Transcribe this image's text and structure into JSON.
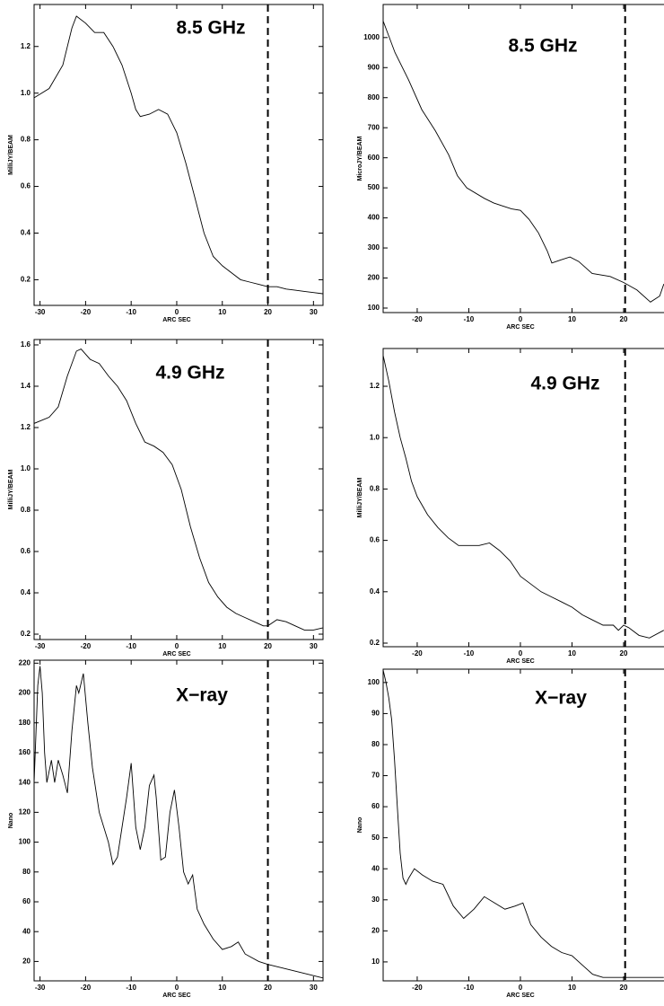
{
  "chart_data": [
    {
      "type": "line",
      "title": "8.5 GHz",
      "xlabel": "ARC SEC",
      "ylabel": "MilliJY/BEAM",
      "color": "#000000",
      "vline": 20,
      "x": [
        -31.3,
        -28,
        -25,
        -23,
        -22,
        -20,
        -18,
        -16,
        -14,
        -12,
        -10,
        -9,
        -8,
        -6,
        -4,
        -2,
        0,
        2,
        4,
        6,
        8,
        10,
        12,
        14,
        16,
        18,
        20,
        22,
        24,
        26,
        28,
        30,
        32
      ],
      "values": [
        0.98,
        1.02,
        1.12,
        1.28,
        1.33,
        1.3,
        1.26,
        1.26,
        1.2,
        1.12,
        1.0,
        0.93,
        0.9,
        0.91,
        0.93,
        0.91,
        0.83,
        0.7,
        0.55,
        0.4,
        0.3,
        0.26,
        0.23,
        0.2,
        0.19,
        0.18,
        0.17,
        0.17,
        0.16,
        0.155,
        0.15,
        0.145,
        0.14
      ],
      "xlim": [
        -31.3,
        32.1
      ],
      "ylim": [
        0.09,
        1.38
      ],
      "xticks": [
        -30,
        -20,
        -10,
        0,
        10,
        20,
        30
      ],
      "yticks": [
        0.2,
        0.4,
        0.6,
        0.8,
        {
          "value": 1,
          "label": "1.0"
        },
        1.2
      ]
    },
    {
      "type": "line",
      "title": "8.5 GHz",
      "xlabel": "ARC SEC",
      "ylabel": "MicroJY/BEAM",
      "color": "#000000",
      "vline": 20.3,
      "x": [
        -26.6,
        -24.3,
        -21.7,
        -19.1,
        -16.5,
        -13.9,
        -12.2,
        -10.4,
        -7,
        -5.2,
        -3.5,
        -1.7,
        0,
        1.7,
        3.5,
        5.2,
        6.1,
        7.8,
        9.6,
        11.3,
        13.9,
        17.4,
        20,
        22.6,
        25.2,
        27,
        27.8
      ],
      "values": [
        1055,
        950,
        860,
        760,
        690,
        610,
        540,
        500,
        465,
        450,
        440,
        430,
        425,
        395,
        350,
        290,
        250,
        260,
        270,
        255,
        215,
        205,
        185,
        160,
        120,
        140,
        180
      ],
      "xlim": [
        -26.6,
        28.7
      ],
      "ylim": [
        85,
        1110
      ],
      "xticks": [
        -20,
        -10,
        0,
        10,
        20
      ],
      "yticks": [
        100,
        200,
        300,
        400,
        500,
        600,
        700,
        800,
        900,
        1000
      ]
    },
    {
      "type": "line",
      "title": "4.9 GHz",
      "xlabel": "ARC SEC",
      "ylabel": "MilliJY/BEAM",
      "color": "#000000",
      "vline": 20,
      "x": [
        -31.3,
        -28,
        -26,
        -24,
        -22,
        -21,
        -19,
        -17,
        -15,
        -13,
        -11,
        -9,
        -7,
        -5,
        -3,
        -1,
        1,
        3,
        5,
        7,
        9,
        11,
        13,
        15,
        17,
        19,
        20,
        22,
        24,
        26,
        28,
        30,
        32
      ],
      "values": [
        1.22,
        1.25,
        1.3,
        1.45,
        1.57,
        1.58,
        1.53,
        1.51,
        1.45,
        1.4,
        1.33,
        1.22,
        1.13,
        1.11,
        1.08,
        1.02,
        0.9,
        0.72,
        0.57,
        0.45,
        0.38,
        0.33,
        0.3,
        0.28,
        0.26,
        0.24,
        0.24,
        0.27,
        0.26,
        0.24,
        0.22,
        0.22,
        0.23
      ],
      "xlim": [
        -31.3,
        32.1
      ],
      "ylim": [
        0.174,
        1.626
      ],
      "xticks": [
        -30,
        -20,
        -10,
        0,
        10,
        20,
        30
      ],
      "yticks": [
        0.2,
        0.4,
        0.6,
        0.8,
        {
          "value": 1,
          "label": "1.0"
        },
        1.2,
        1.4,
        1.6
      ]
    },
    {
      "type": "line",
      "title": "4.9 GHz",
      "xlabel": "ARC SEC",
      "ylabel": "MilliJY/BEAM",
      "color": "#000000",
      "vline": 20.3,
      "x": [
        -26.6,
        -25.5,
        -24.4,
        -23.3,
        -22.2,
        -21.1,
        -20,
        -18,
        -16,
        -14,
        -12,
        -10,
        -8,
        -6,
        -4,
        -2,
        0,
        2,
        4,
        6,
        8,
        10,
        12,
        14,
        16,
        18,
        19,
        20,
        21,
        23,
        25,
        27.8
      ],
      "values": [
        1.32,
        1.22,
        1.1,
        1.0,
        0.92,
        0.83,
        0.77,
        0.7,
        0.65,
        0.61,
        0.58,
        0.58,
        0.58,
        0.59,
        0.56,
        0.52,
        0.46,
        0.43,
        0.4,
        0.38,
        0.36,
        0.34,
        0.31,
        0.29,
        0.27,
        0.27,
        0.25,
        0.27,
        0.26,
        0.23,
        0.22,
        0.25
      ],
      "xlim": [
        -26.6,
        28.7
      ],
      "ylim": [
        0.186,
        1.347
      ],
      "xticks": [
        -20,
        -10,
        0,
        10,
        20
      ],
      "yticks": [
        0.2,
        0.4,
        0.6,
        0.8,
        {
          "value": 1,
          "label": "1.0"
        },
        1.2
      ]
    },
    {
      "type": "line",
      "title": "X−ray",
      "xlabel": "ARC SEC",
      "ylabel": "Nano",
      "color": "#000000",
      "vline": 20,
      "x": [
        -31.3,
        -30.5,
        -30,
        -29.5,
        -29,
        -28.5,
        -27.5,
        -26.8,
        -26,
        -25,
        -24,
        -23,
        -22,
        -21.5,
        -20.5,
        -19.5,
        -18.5,
        -17,
        -16,
        -15,
        -14,
        -13,
        -12,
        -11,
        -10,
        -9,
        -8,
        -7,
        -6,
        -5,
        -4.5,
        -3.5,
        -2.5,
        -1.5,
        -0.5,
        0.5,
        1.5,
        2.5,
        3.5,
        4.5,
        6,
        8,
        10,
        12,
        13.5,
        15,
        18,
        20,
        24,
        28,
        32
      ],
      "values": [
        140,
        205,
        218,
        200,
        160,
        140,
        155,
        140,
        155,
        145,
        133,
        175,
        205,
        200,
        213,
        180,
        150,
        120,
        110,
        100,
        85,
        90,
        110,
        130,
        153,
        110,
        95,
        110,
        138,
        145,
        130,
        88,
        90,
        120,
        135,
        110,
        80,
        72,
        78,
        55,
        45,
        35,
        28,
        30,
        33,
        25,
        20,
        18,
        15,
        12,
        9
      ],
      "xlim": [
        -31.3,
        32.1
      ],
      "ylim": [
        7,
        222
      ],
      "xticks": [
        -30,
        -20,
        -10,
        0,
        10,
        20,
        30
      ],
      "yticks": [
        20,
        40,
        60,
        80,
        100,
        120,
        140,
        160,
        180,
        200,
        220
      ]
    },
    {
      "type": "line",
      "title": "X−ray",
      "xlabel": "ARC SEC",
      "ylabel": "Nano",
      "color": "#000000",
      "vline": 20.3,
      "x": [
        -26.6,
        -26.05,
        -25.5,
        -24.95,
        -24.4,
        -23.85,
        -23.3,
        -22.75,
        -22.2,
        -21.65,
        -20.55,
        -19,
        -17,
        -15,
        -13,
        -11,
        -9,
        -7,
        -5,
        -3,
        -1,
        0.5,
        2,
        4,
        6,
        8,
        10,
        12,
        14,
        16,
        18,
        20,
        24,
        27.8
      ],
      "values": [
        104,
        100,
        95,
        88,
        75,
        60,
        45,
        37,
        35,
        37,
        40,
        38,
        36,
        35,
        28,
        24,
        27,
        31,
        29,
        27,
        28,
        29,
        22,
        18,
        15,
        13,
        12,
        9,
        6,
        5,
        5,
        5,
        5,
        5
      ],
      "xlim": [
        -26.6,
        28.7
      ],
      "ylim": [
        3.9,
        104.3
      ],
      "xticks": [
        -20,
        -10,
        0,
        10,
        20
      ],
      "yticks": [
        10,
        20,
        30,
        40,
        50,
        60,
        70,
        80,
        90,
        100
      ]
    }
  ]
}
